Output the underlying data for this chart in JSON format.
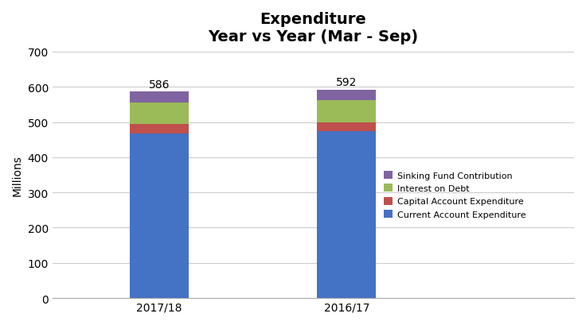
{
  "title_line1": "Expenditure",
  "title_line2": "Year vs Year (Mar - Sep)",
  "categories": [
    "2017/18",
    "2016/17"
  ],
  "current_account": [
    467,
    473
  ],
  "capital_account": [
    27,
    27
  ],
  "interest_on_debt": [
    62,
    62
  ],
  "sinking_fund": [
    30,
    30
  ],
  "totals": [
    586,
    592
  ],
  "colors": {
    "current_account": "#4472C4",
    "capital_account": "#C0504D",
    "interest_on_debt": "#9BBB59",
    "sinking_fund": "#8064A2"
  },
  "ylabel": "Millions",
  "ylim": [
    0,
    700
  ],
  "yticks": [
    0,
    100,
    200,
    300,
    400,
    500,
    600,
    700
  ],
  "legend_labels": [
    "Sinking Fund Contribution",
    "Interest on Debt",
    "Capital Account Expenditure",
    "Current Account Expenditure"
  ],
  "background_color": "#FFFFFF",
  "bar_width": 0.22,
  "title_fontsize": 14,
  "label_fontsize": 10,
  "tick_fontsize": 10,
  "x_positions": [
    0.3,
    1.0
  ],
  "xlim": [
    -0.1,
    1.85
  ]
}
